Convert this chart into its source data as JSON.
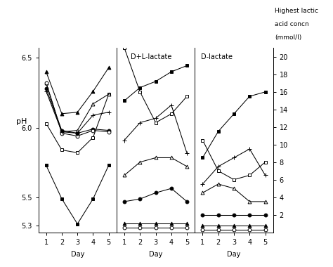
{
  "days": [
    1,
    2,
    3,
    4,
    5
  ],
  "pH": {
    "filled_square": [
      5.73,
      5.49,
      5.31,
      5.49,
      5.73
    ],
    "open_square": [
      6.03,
      5.84,
      5.82,
      5.93,
      6.24
    ],
    "filled_triangle": [
      6.4,
      6.1,
      6.11,
      6.26,
      6.43
    ],
    "open_triangle": [
      6.32,
      5.97,
      5.98,
      6.17,
      6.24
    ],
    "filled_circle": [
      6.28,
      5.98,
      5.96,
      5.99,
      5.98
    ],
    "open_circle": [
      6.32,
      5.96,
      5.94,
      5.98,
      5.97
    ],
    "plus": [
      6.26,
      5.97,
      5.96,
      6.09,
      6.11
    ]
  },
  "dl_lactate": {
    "filled_square": [
      15.0,
      16.5,
      17.2,
      18.3,
      19.0
    ],
    "open_square": [
      21.0,
      16.0,
      12.5,
      13.5,
      15.5
    ],
    "plus": [
      10.5,
      12.5,
      13.0,
      14.5,
      9.0
    ],
    "open_triangle": [
      6.5,
      8.0,
      8.5,
      8.5,
      7.5
    ],
    "filled_circle": [
      3.5,
      3.8,
      4.5,
      5.0,
      3.5
    ],
    "filled_triangle": [
      1.0,
      1.0,
      1.0,
      1.0,
      1.0
    ],
    "open_circle": [
      0.5,
      0.5,
      0.5,
      0.5,
      0.5
    ]
  },
  "d_lactate": {
    "filled_square": [
      8.5,
      11.5,
      13.5,
      15.5,
      16.0
    ],
    "open_square": [
      10.5,
      7.0,
      6.0,
      6.5,
      8.0
    ],
    "plus": [
      5.5,
      7.5,
      8.5,
      9.5,
      6.5
    ],
    "open_triangle": [
      4.5,
      5.5,
      5.0,
      3.5,
      3.5
    ],
    "filled_circle": [
      2.0,
      2.0,
      2.0,
      2.0,
      2.0
    ],
    "filled_triangle": [
      0.8,
      0.8,
      0.8,
      0.8,
      0.8
    ],
    "open_circle": [
      0.3,
      0.3,
      0.3,
      0.3,
      0.3
    ]
  },
  "ph_ylim": [
    5.25,
    6.57
  ],
  "ph_yticks": [
    5.3,
    5.5,
    6.0,
    6.5
  ],
  "ph_ytick_labels": [
    "5.3",
    "5.5",
    "6.0",
    "6.5"
  ],
  "lac_ylim": [
    0,
    21
  ],
  "lac_yticks": [
    2,
    4,
    6,
    8,
    10,
    12,
    14,
    16,
    18,
    20
  ],
  "panel_label_dl": "D+L-lactate",
  "panel_label_d": "D-lactate",
  "xlabel": "Day",
  "ylabel_left": "pH",
  "right_label_1": "Highest lactic",
  "right_label_2": "acid concn",
  "right_label_3": "(mmol/l)",
  "background_color": "#ffffff"
}
